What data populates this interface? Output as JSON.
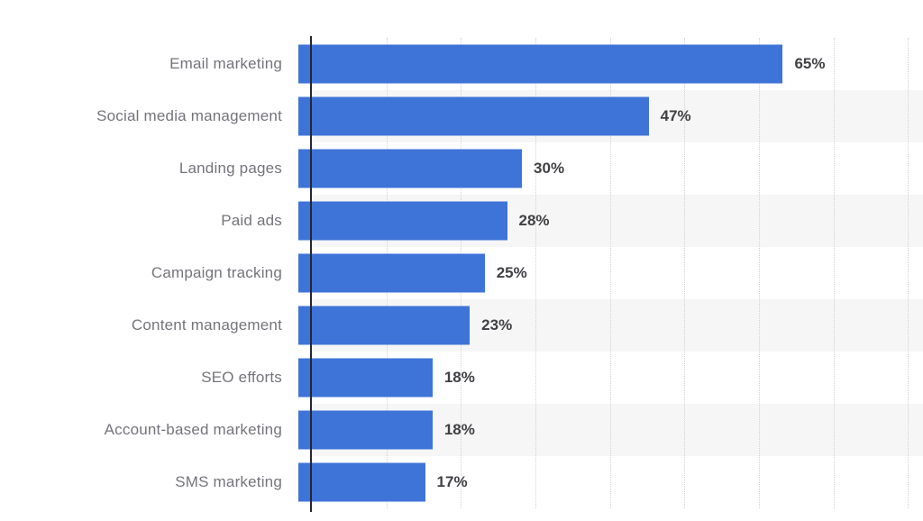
{
  "chart_data": {
    "type": "bar",
    "orientation": "horizontal",
    "title": "",
    "xlabel": "",
    "ylabel": "",
    "categories": [
      "Email marketing",
      "Social media management",
      "Landing pages",
      "Paid ads",
      "Campaign tracking",
      "Content management",
      "SEO efforts",
      "Account-based marketing",
      "SMS marketing"
    ],
    "values": [
      65,
      47,
      30,
      28,
      25,
      23,
      18,
      18,
      17
    ],
    "value_labels": [
      "65%",
      "47%",
      "30%",
      "28%",
      "25%",
      "23%",
      "18%",
      "18%",
      "17%"
    ],
    "xlim": [
      0,
      82
    ],
    "gridlines_percent": [
      10,
      20,
      30,
      40,
      50,
      60,
      70,
      80
    ],
    "grid": "dotted-vertical",
    "legend": "none",
    "banded_row_indices": [
      1,
      3,
      5,
      7
    ],
    "colors": {
      "bar": "#3e73d8",
      "band": "#f6f6f6",
      "category_label": "#74747b",
      "value_label": "#404045",
      "axis": "#26262e",
      "gridline": "#d2d2d2",
      "background": "#ffffff"
    }
  }
}
